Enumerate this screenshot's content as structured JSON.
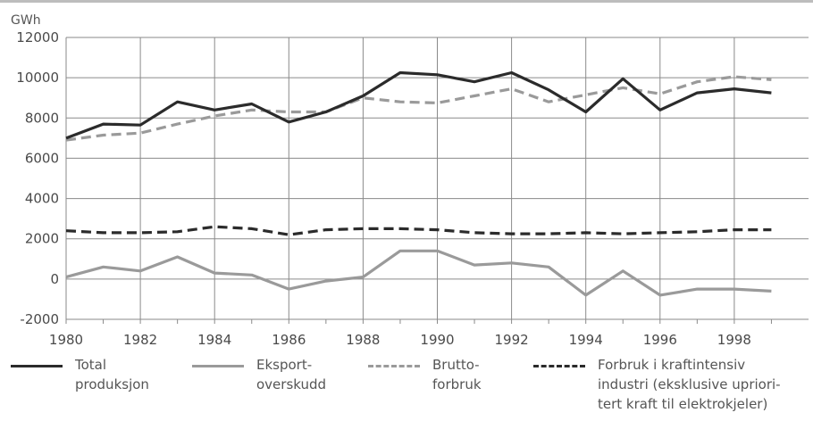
{
  "chart_data": {
    "type": "line",
    "unit": "GWh",
    "x": [
      1980,
      1981,
      1982,
      1983,
      1984,
      1985,
      1986,
      1987,
      1988,
      1989,
      1990,
      1991,
      1992,
      1993,
      1994,
      1995,
      1996,
      1997,
      1998,
      1999
    ],
    "x_ticks": [
      "1980",
      "1982",
      "1984",
      "1986",
      "1988",
      "1990",
      "1992",
      "1994",
      "1996",
      "1998"
    ],
    "y_ticks": [
      "-2000",
      "0",
      "2000",
      "4000",
      "6000",
      "8000",
      "10000",
      "12000"
    ],
    "ylim": [
      -2000,
      12000
    ],
    "grid": true,
    "legend_position": "bottom",
    "series": [
      {
        "name": "Total produksjon",
        "color": "#2b2b2b",
        "style": "solid",
        "values": [
          7000,
          7700,
          7650,
          8800,
          8400,
          8700,
          7800,
          8300,
          9100,
          10250,
          10150,
          9800,
          10250,
          9400,
          8300,
          9950,
          8400,
          9250,
          9450,
          9250
        ]
      },
      {
        "name": "Eksport-overskudd",
        "color": "#9a9a9a",
        "style": "solid",
        "values": [
          100,
          600,
          400,
          1100,
          300,
          200,
          -500,
          -100,
          100,
          1400,
          1400,
          700,
          800,
          600,
          -800,
          400,
          -800,
          -500,
          -500,
          -600
        ]
      },
      {
        "name": "Brutto-forbruk",
        "color": "#9a9a9a",
        "style": "dashed",
        "values": [
          6900,
          7150,
          7250,
          7700,
          8100,
          8400,
          8300,
          8300,
          9000,
          8800,
          8750,
          9100,
          9450,
          8800,
          9150,
          9500,
          9200,
          9800,
          10050,
          9900
        ]
      },
      {
        "name": "Forbruk i kraftintensiv industri (eksklusive uprioritert kraft til elektrokjeler)",
        "color": "#2b2b2b",
        "style": "dashed",
        "values": [
          2400,
          2300,
          2300,
          2350,
          2600,
          2500,
          2200,
          2450,
          2500,
          2500,
          2450,
          2300,
          2250,
          2250,
          2300,
          2250,
          2300,
          2350,
          2450,
          2450
        ]
      }
    ],
    "legend_labels": [
      "Total\nproduksjon",
      "Eksport-\noverskudd",
      "Brutto-\nforbruk",
      "Forbruk i kraftintensiv\nindustri (eksklusive upriori-\ntert kraft til elektrokjeler)"
    ]
  }
}
